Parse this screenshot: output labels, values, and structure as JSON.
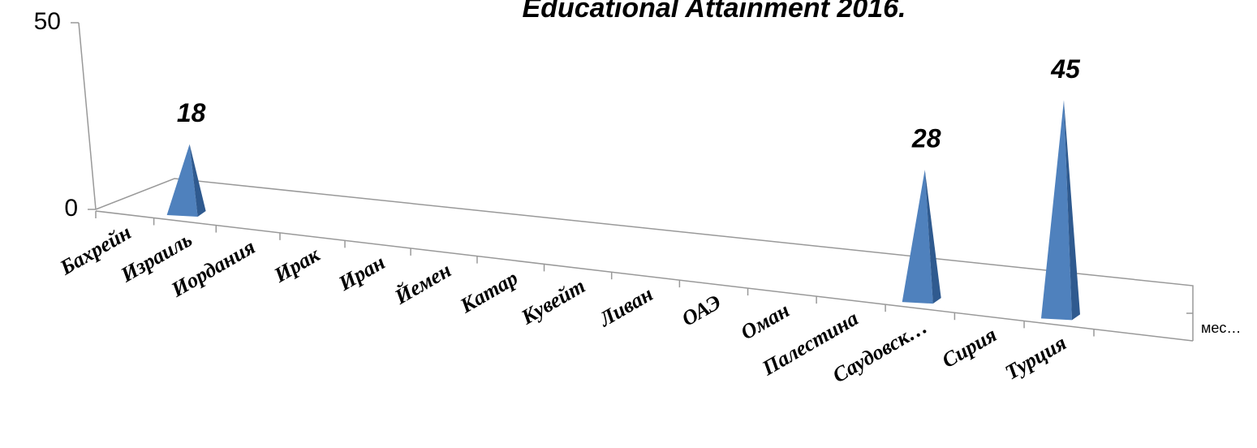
{
  "chart_data": {
    "type": "pyramid3d",
    "title": "Educational Attainment 2016.",
    "categories": [
      "Бахрейн",
      "Израиль",
      "Иордания",
      "Ирак",
      "Иран",
      "Йемен",
      "Катар",
      "Кувейт",
      "Ливан",
      "ОАЭ",
      "Оман",
      "Палестина",
      "Саудовск…",
      "Сирия",
      "Турция"
    ],
    "series": [
      {
        "name": "мес…",
        "color": "#4f81bd",
        "values": [
          null,
          18,
          null,
          null,
          null,
          null,
          null,
          null,
          null,
          null,
          null,
          null,
          28,
          null,
          45
        ]
      }
    ],
    "ylim": [
      0,
      50
    ],
    "yticks": [
      0,
      50
    ]
  }
}
